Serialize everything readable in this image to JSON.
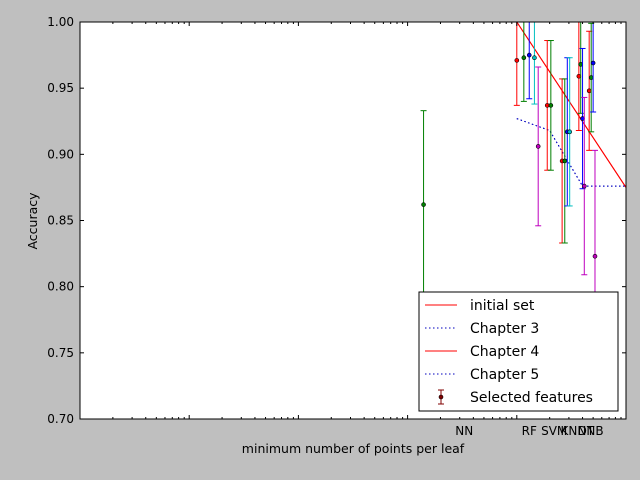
{
  "chart_data": {
    "type": "scatter",
    "title": "",
    "xlabel": "minimum number of points per leaf",
    "ylabel": "Accuracy",
    "xscale": "log",
    "xlim": [
      1,
      100000
    ],
    "ylim": [
      0.7,
      1.0
    ],
    "grid": false,
    "legend_placement": "lower-right",
    "y_ticks": [
      0.7,
      0.75,
      0.8,
      0.85,
      0.9,
      0.95,
      1.0
    ],
    "y_tick_labels": [
      "0.70",
      "0.75",
      "0.80",
      "0.85",
      "0.90",
      "0.95",
      "1.00"
    ],
    "x_category_labels": [
      {
        "label": "NN",
        "x": 3300
      },
      {
        "label": "RF",
        "x": 13000
      },
      {
        "label": "SVM",
        "x": 22000
      },
      {
        "label": "KNN",
        "x": 33000
      },
      {
        "label": "DT",
        "x": 43000
      },
      {
        "label": "NB",
        "x": 52000
      }
    ],
    "series": [
      {
        "name": "initial set",
        "kind": "line",
        "color": "#ff0000",
        "dash": "solid",
        "x": [
          10000,
          100000
        ],
        "y": [
          1.0,
          0.875
        ]
      },
      {
        "name": "Chapter 3",
        "kind": "line",
        "color": "#0000bf",
        "dash": "dotted",
        "x": [
          10000,
          20000,
          40000,
          100000
        ],
        "y": [
          0.927,
          0.918,
          0.876,
          0.876
        ]
      },
      {
        "name": "Chapter 4",
        "kind": "line",
        "color": "#ff0000",
        "dash": "solid",
        "x": [
          10000,
          100000
        ],
        "y": [
          1.0,
          0.875
        ]
      },
      {
        "name": "Chapter 5",
        "kind": "line",
        "color": "#0000bf",
        "dash": "dotted",
        "x": [
          10000,
          20000,
          40000,
          100000
        ],
        "y": [
          0.927,
          0.918,
          0.876,
          0.876
        ]
      },
      {
        "name": "Selected features",
        "kind": "errorbar",
        "color": "#800000",
        "points": [
          {
            "x": 1400,
            "y": 0.862,
            "err": 0.071,
            "color": "#007f00"
          },
          {
            "x": 10000,
            "y": 0.971,
            "err": 0.034,
            "color": "#ff0000"
          },
          {
            "x": 11600,
            "y": 0.973,
            "err": 0.033,
            "color": "#007f00"
          },
          {
            "x": 13000,
            "y": 0.975,
            "err": 0.033,
            "color": "#0000ff"
          },
          {
            "x": 14500,
            "y": 0.973,
            "err": 0.035,
            "color": "#00bfbf"
          },
          {
            "x": 15700,
            "y": 0.906,
            "err": 0.06,
            "color": "#bf00bf"
          },
          {
            "x": 19000,
            "y": 0.937,
            "err": 0.049,
            "color": "#ff0000"
          },
          {
            "x": 20500,
            "y": 0.937,
            "err": 0.049,
            "color": "#007f00"
          },
          {
            "x": 26000,
            "y": 0.895,
            "err": 0.062,
            "color": "#ff0000"
          },
          {
            "x": 27500,
            "y": 0.895,
            "err": 0.062,
            "color": "#007f00"
          },
          {
            "x": 29000,
            "y": 0.917,
            "err": 0.056,
            "color": "#0000ff"
          },
          {
            "x": 30500,
            "y": 0.917,
            "err": 0.056,
            "color": "#00bfbf"
          },
          {
            "x": 37000,
            "y": 0.959,
            "err": 0.041,
            "color": "#ff0000"
          },
          {
            "x": 38500,
            "y": 0.968,
            "err": 0.037,
            "color": "#007f00"
          },
          {
            "x": 40000,
            "y": 0.927,
            "err": 0.053,
            "color": "#0000ff"
          },
          {
            "x": 41500,
            "y": 0.876,
            "err": 0.067,
            "color": "#bf00bf"
          },
          {
            "x": 46000,
            "y": 0.948,
            "err": 0.045,
            "color": "#ff0000"
          },
          {
            "x": 48000,
            "y": 0.958,
            "err": 0.041,
            "color": "#007f00"
          },
          {
            "x": 50000,
            "y": 0.969,
            "err": 0.037,
            "color": "#0000ff"
          },
          {
            "x": 52000,
            "y": 0.823,
            "err": 0.08,
            "color": "#bf00bf"
          }
        ]
      }
    ]
  }
}
